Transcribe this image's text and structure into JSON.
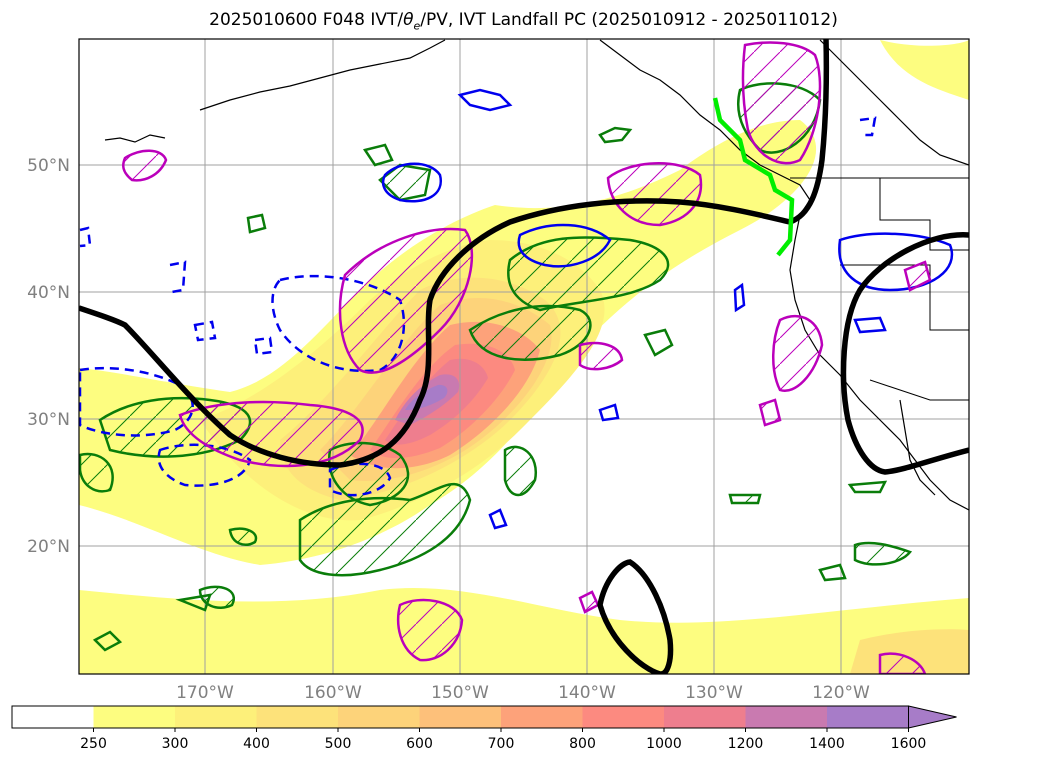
{
  "title": {
    "prefix": "2025010600 F048 IVT/",
    "theta": "θ",
    "theta_sub": "e",
    "suffix": "/PV, IVT Landfall PC (2025010912 - 2025011012)"
  },
  "lat_ticks": [
    "50°N",
    "40°N",
    "30°N",
    "20°N"
  ],
  "lon_ticks": [
    "170°W",
    "160°W",
    "150°W",
    "140°W",
    "130°W",
    "120°W"
  ],
  "colorbar": {
    "levels": [
      "250",
      "300",
      "400",
      "500",
      "600",
      "700",
      "800",
      "1000",
      "1200",
      "1400",
      "1600"
    ],
    "colors": [
      "#ffffff",
      "#fdfd80",
      "#fdf07a",
      "#fde27a",
      "#fdd37a",
      "#fdc07a",
      "#fda27a",
      "#fc8a80",
      "#ee7e8e",
      "#c97ab0",
      "#a77cc8",
      "#a77cc8"
    ]
  },
  "legend_colors": {
    "theta_e_positive": "#0a7d0a",
    "theta_e_negative": "#0000ee",
    "pv": "#bb00bb",
    "ivt_pc": "#000000",
    "landfall": "#00ee00"
  }
}
